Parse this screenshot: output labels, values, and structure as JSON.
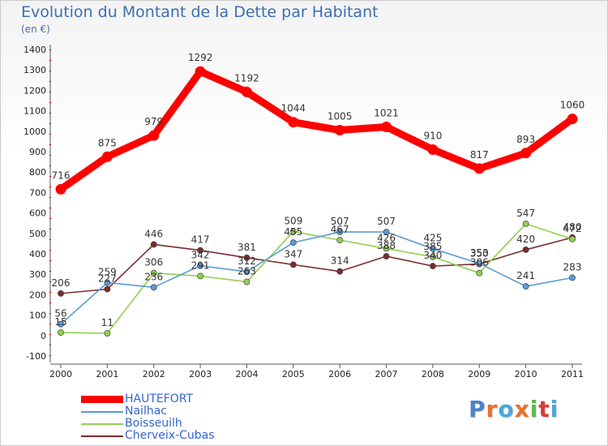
{
  "title": "Evolution du Montant de la Dette par Habitant",
  "subtitle": "(en €)",
  "logo": {
    "text": "Proxiti",
    "colors": [
      "#4a86c8",
      "#e8702a",
      "#4aa8d8",
      "#e8702a",
      "#5db94a",
      "#d93b3b",
      "#4aa8d8"
    ]
  },
  "chart_data": {
    "type": "line",
    "title": "Evolution du Montant de la Dette par Habitant",
    "ylabel": "(en €)",
    "xlabel": "",
    "x": [
      "2000",
      "2001",
      "2002",
      "2003",
      "2004",
      "2005",
      "2006",
      "2007",
      "2008",
      "2009",
      "2010",
      "2011"
    ],
    "ylim": [
      -100,
      1400
    ],
    "yticks": [
      "-100",
      "0",
      "100",
      "200",
      "300",
      "400",
      "500",
      "600",
      "700",
      "800",
      "900",
      "1000",
      "1100",
      "1200",
      "1300",
      "1400"
    ],
    "grid": false,
    "legend_position": "bottom-left",
    "series": [
      {
        "name": "HAUTEFORT",
        "color": "#ff0000",
        "values": [
          716,
          875,
          979,
          1292,
          1192,
          1044,
          1005,
          1021,
          910,
          817,
          893,
          1060
        ],
        "labels": [
          "716",
          "875",
          "979",
          "1292",
          "1192",
          "1044",
          "1005",
          "1021",
          "910",
          "817",
          "893",
          "1060"
        ]
      },
      {
        "name": "Nailhac",
        "color": "#5b9bd5",
        "values": [
          56,
          259,
          236,
          342,
          312,
          455,
          507,
          507,
          425,
          353,
          241,
          283
        ],
        "labels": [
          "56",
          "259",
          "236",
          "342",
          "312",
          "455",
          "507",
          "507",
          "425",
          "353",
          "241",
          "283"
        ]
      },
      {
        "name": "Boisseuilh",
        "color": "#92d050",
        "values": [
          15,
          11,
          306,
          291,
          263,
          509,
          467,
          426,
          385,
          306,
          547,
          472
        ],
        "labels": [
          "15",
          "11",
          "306",
          "291",
          "263",
          "509",
          "467",
          "426",
          "385",
          "306",
          "547",
          "472"
        ]
      },
      {
        "name": "Cherveix-Cubas",
        "color": "#7b2c2c",
        "values": [
          206,
          227,
          446,
          417,
          381,
          347,
          314,
          388,
          340,
          350,
          420,
          480
        ],
        "labels": [
          "206",
          "227",
          "446",
          "417",
          "381",
          "347",
          "314",
          "388",
          "340",
          "350",
          "420",
          "480"
        ]
      }
    ]
  }
}
